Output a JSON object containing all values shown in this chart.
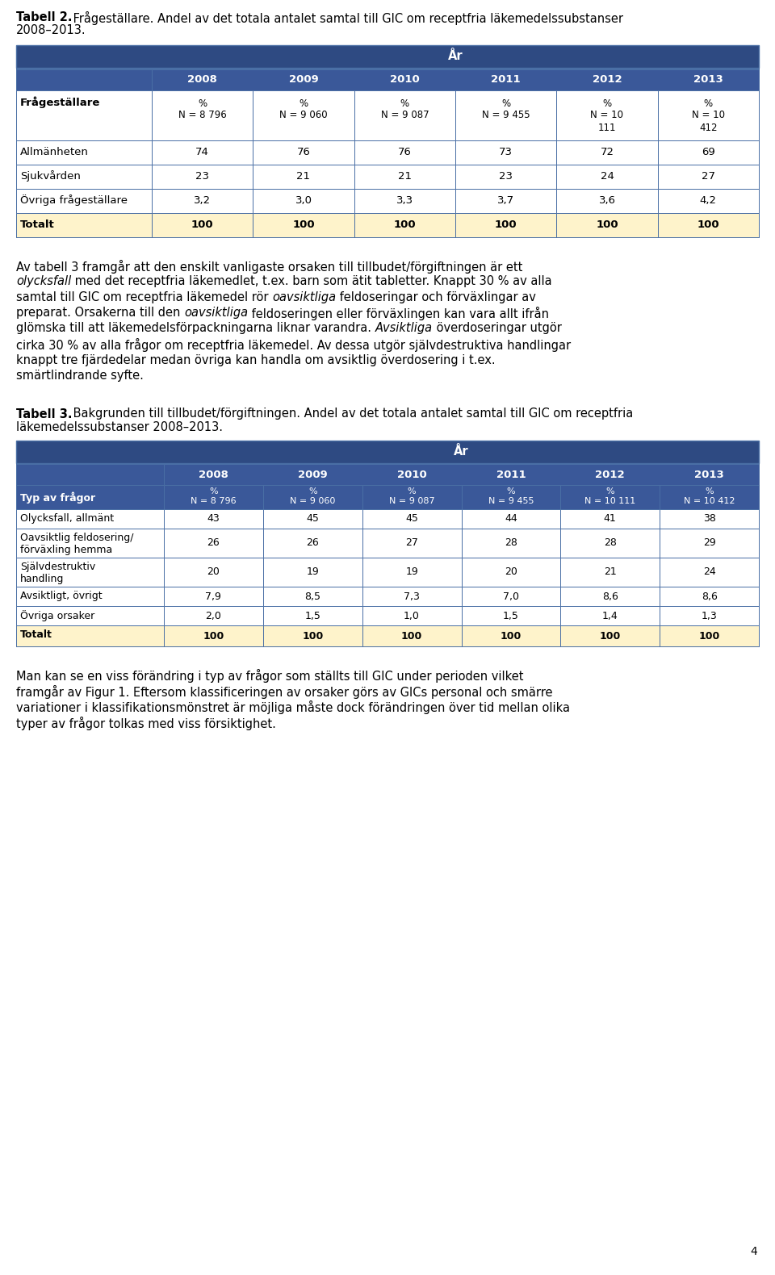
{
  "table2_years": [
    "2008",
    "2009",
    "2010",
    "2011",
    "2012",
    "2013"
  ],
  "table2_col0_header": "Frågeställare",
  "table2_sub_col0": "",
  "table2_subheaders": [
    "%\nN = 8 796",
    "%\nN = 9 060",
    "%\nN = 9 087",
    "%\nN = 9 455",
    "%\nN = 10\n111",
    "%\nN = 10\n412"
  ],
  "table2_rows": [
    [
      "Allmänheten",
      "74",
      "76",
      "76",
      "73",
      "72",
      "69"
    ],
    [
      "Sjukvården",
      "23",
      "21",
      "21",
      "23",
      "24",
      "27"
    ],
    [
      "Övriga frågeställare",
      "3,2",
      "3,0",
      "3,3",
      "3,7",
      "3,6",
      "4,2"
    ],
    [
      "Totalt",
      "100",
      "100",
      "100",
      "100",
      "100",
      "100"
    ]
  ],
  "table3_years": [
    "2008",
    "2009",
    "2010",
    "2011",
    "2012",
    "2013"
  ],
  "table3_col0_header": "Typ av frågor",
  "table3_subheaders": [
    "%\nN = 8 796",
    "%\nN = 9 060",
    "%\nN = 9 087",
    "%\nN = 9 455",
    "%\nN = 10 111",
    "%\nN = 10 412"
  ],
  "table3_rows": [
    [
      "Olycksfall, allmänt",
      "43",
      "45",
      "45",
      "44",
      "41",
      "38"
    ],
    [
      "Oavsiktlig feldosering/\nförväxling hemma",
      "26",
      "26",
      "27",
      "28",
      "28",
      "29"
    ],
    [
      "Självdestruktiv\nhandling",
      "20",
      "19",
      "19",
      "20",
      "21",
      "24"
    ],
    [
      "Avsiktligt, övrigt",
      "7,9",
      "8,5",
      "7,3",
      "7,0",
      "8,6",
      "8,6"
    ],
    [
      "Övriga orsaker",
      "2,0",
      "1,5",
      "1,0",
      "1,5",
      "1,4",
      "1,3"
    ],
    [
      "Totalt",
      "100",
      "100",
      "100",
      "100",
      "100",
      "100"
    ]
  ],
  "header_dark": "#2E4A82",
  "header_med": "#3A5899",
  "totalt_bg": "#FEF3CB",
  "border_col": "#4A6FA5",
  "white": "#FFFFFF",
  "page_bg": "#FFFFFF"
}
